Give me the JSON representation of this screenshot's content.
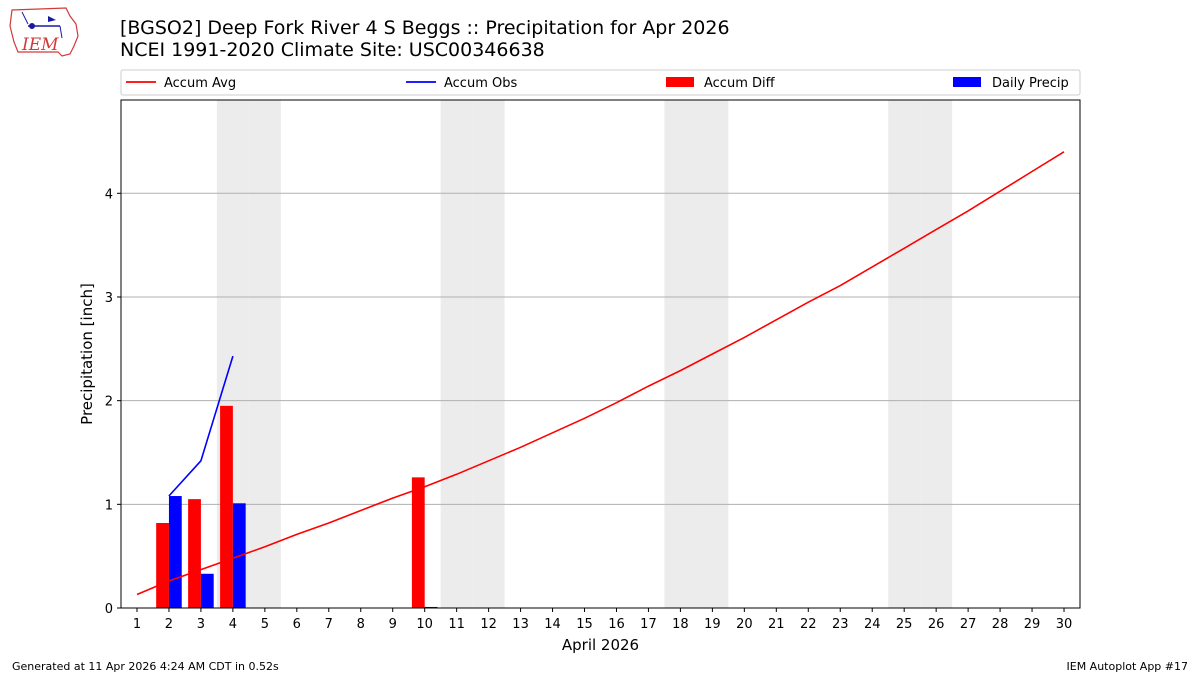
{
  "header": {
    "title_line1": "[BGSO2] Deep Fork River 4 S Beggs :: Precipitation for Apr 2026",
    "title_line2": "NCEI 1991-2020 Climate Site: USC00346638",
    "logo_text": "IEM"
  },
  "footer": {
    "left": "Generated at 11 Apr 2026 4:24 AM CDT in 0.52s",
    "right": "IEM Autoplot App #17"
  },
  "chart_data": {
    "type": "bar",
    "xlabel": "April 2026",
    "ylabel": "Precipitation [inch]",
    "xlim": [
      0.5,
      30.5
    ],
    "ylim": [
      0,
      4.9
    ],
    "yticks": [
      0,
      1,
      2,
      3,
      4
    ],
    "xticks": [
      1,
      2,
      3,
      4,
      5,
      6,
      7,
      8,
      9,
      10,
      11,
      12,
      13,
      14,
      15,
      16,
      17,
      18,
      19,
      20,
      21,
      22,
      23,
      24,
      25,
      26,
      27,
      28,
      29,
      30
    ],
    "grid": "horizontal",
    "legend_placement": "top, above plot",
    "weekend_days": [
      4,
      5,
      11,
      12,
      18,
      19,
      25,
      26
    ],
    "colors": {
      "accum_avg": "#ff0000",
      "accum_obs": "#0000ff",
      "accum_diff": "#ff0000",
      "daily_precip": "#0000ff",
      "weekend_shade": "#ececec"
    },
    "legend": [
      {
        "name": "Accum Avg",
        "kind": "line",
        "color": "#ff0000"
      },
      {
        "name": "Accum Obs",
        "kind": "line",
        "color": "#0000ff"
      },
      {
        "name": "Accum Diff",
        "kind": "bar",
        "color": "#ff0000"
      },
      {
        "name": "Daily Precip",
        "kind": "bar",
        "color": "#0000ff"
      }
    ],
    "series": [
      {
        "name": "Accum Avg",
        "type": "line",
        "x": [
          1,
          2,
          3,
          4,
          5,
          6,
          7,
          8,
          9,
          10,
          11,
          12,
          13,
          14,
          15,
          16,
          17,
          18,
          19,
          20,
          21,
          22,
          23,
          24,
          25,
          26,
          27,
          28,
          29,
          30
        ],
        "values": [
          0.13,
          0.26,
          0.37,
          0.48,
          0.59,
          0.71,
          0.82,
          0.94,
          1.06,
          1.17,
          1.29,
          1.42,
          1.55,
          1.69,
          1.83,
          1.98,
          2.14,
          2.29,
          2.45,
          2.61,
          2.78,
          2.95,
          3.11,
          3.29,
          3.47,
          3.65,
          3.83,
          4.02,
          4.21,
          4.4
        ]
      },
      {
        "name": "Accum Obs",
        "type": "line",
        "x": [
          2,
          3,
          4
        ],
        "values": [
          1.08,
          1.42,
          2.43
        ]
      },
      {
        "name": "Accum Diff",
        "type": "bar",
        "x": [
          2,
          3,
          4,
          10
        ],
        "values": [
          0.82,
          1.05,
          1.95,
          1.26
        ]
      },
      {
        "name": "Daily Precip",
        "type": "bar",
        "x": [
          2,
          3,
          4,
          10
        ],
        "values": [
          1.08,
          0.33,
          1.01,
          0.01
        ]
      }
    ]
  }
}
